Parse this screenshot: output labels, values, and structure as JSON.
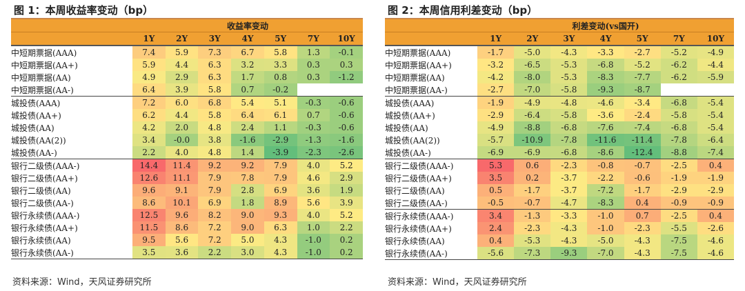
{
  "left": {
    "title": "图 1：本周收益率变动（bp）",
    "header_group": "收益率变动",
    "tenors": [
      "1Y",
      "2Y",
      "3Y",
      "4Y",
      "5Y",
      "7Y",
      "10Y"
    ],
    "rows": [
      {
        "label": "中短期票据(AAA)",
        "values": [
          "7.4",
          "5.9",
          "7.3",
          "6.7",
          "5.8",
          "1.3",
          "-0.1"
        ]
      },
      {
        "label": "中短期票据(AA+)",
        "values": [
          "5.9",
          "4.4",
          "6.3",
          "3.2",
          "3.3",
          "0.3",
          "0.3"
        ]
      },
      {
        "label": "中短期票据(AA)",
        "values": [
          "4.9",
          "2.9",
          "6.3",
          "1.7",
          "0.8",
          "0.3",
          "-1.2"
        ]
      },
      {
        "label": "中短期票据(AA-)",
        "values": [
          "6.4",
          "3.9",
          "5.8",
          "0.7",
          "-0.2",
          "",
          ""
        ],
        "group_end": true
      },
      {
        "label": "城投债(AAA)",
        "values": [
          "7.2",
          "6.0",
          "6.8",
          "5.4",
          "5.1",
          "-0.3",
          "-0.6"
        ]
      },
      {
        "label": "城投债(AA+)",
        "values": [
          "6.2",
          "4.4",
          "5.8",
          "6.4",
          "6.1",
          "0.7",
          "-0.6"
        ]
      },
      {
        "label": "城投债(AA)",
        "values": [
          "4.2",
          "2.0",
          "4.8",
          "2.4",
          "1.1",
          "-0.3",
          "-0.6"
        ]
      },
      {
        "label": "城投债(AA(2))",
        "values": [
          "3.4",
          "-0.0",
          "3.8",
          "-1.6",
          "-2.9",
          "-1.3",
          "-1.6"
        ]
      },
      {
        "label": "城投债(AA-)",
        "values": [
          "2.2",
          "4.0",
          "4.8",
          "1.4",
          "-3.9",
          "-2.3",
          "-2.6"
        ],
        "group_end": true
      },
      {
        "label": "银行二级债(AAA-)",
        "values": [
          "14.4",
          "11.4",
          "9.2",
          "9.2",
          "7.9",
          "4.0",
          "5.2"
        ]
      },
      {
        "label": "银行二级债(AA+)",
        "values": [
          "12.6",
          "11.1",
          "7.9",
          "7.8",
          "7.9",
          "4.6",
          "2.9"
        ]
      },
      {
        "label": "银行二级债(AA)",
        "values": [
          "9.6",
          "9.1",
          "7.9",
          "2.8",
          "6.9",
          "3.6",
          "1.9"
        ]
      },
      {
        "label": "银行二级债(AA-)",
        "values": [
          "8.6",
          "10.1",
          "6.9",
          "1.8",
          "8.9",
          "5.6",
          "3.9"
        ]
      },
      {
        "label": "银行永续债(AAA-)",
        "values": [
          "12.5",
          "9.6",
          "8.2",
          "9.0",
          "9.3",
          "4.0",
          "5.2"
        ]
      },
      {
        "label": "银行永续债(AA+)",
        "values": [
          "11.5",
          "8.6",
          "7.2",
          "9.0",
          "6.3",
          "1.0",
          "2.2"
        ]
      },
      {
        "label": "银行永续债(AA)",
        "values": [
          "9.5",
          "5.6",
          "7.2",
          "5.0",
          "4.3",
          "-1.0",
          "0.2"
        ]
      },
      {
        "label": "银行永续债(AA-)",
        "values": [
          "3.5",
          "3.6",
          "2.2",
          "3.0",
          "4.3",
          "-1.0",
          "0.2"
        ]
      }
    ],
    "source": "资料来源：Wind，天风证券研究所"
  },
  "right": {
    "title": "图 2：本周信用利差变动（bp）",
    "header_group": "利差变动(vs国开)",
    "tenors": [
      "1Y",
      "2Y",
      "3Y",
      "4Y",
      "5Y",
      "7Y",
      "10Y"
    ],
    "rows": [
      {
        "label": "中短期票据(AAA)",
        "values": [
          "-1.7",
          "-5.0",
          "-4.3",
          "-3.3",
          "-2.7",
          "-5.2",
          "-4.9"
        ]
      },
      {
        "label": "中短期票据(AA+)",
        "values": [
          "-3.2",
          "-6.5",
          "-5.3",
          "-6.8",
          "-5.2",
          "-6.2",
          "-4.4"
        ]
      },
      {
        "label": "中短期票据(AA)",
        "values": [
          "-4.2",
          "-8.0",
          "-5.3",
          "-8.3",
          "-7.7",
          "-6.2",
          "-5.9"
        ]
      },
      {
        "label": "中短期票据(AA-)",
        "values": [
          "-2.7",
          "-7.0",
          "-5.8",
          "-9.3",
          "-8.7",
          "",
          ""
        ],
        "group_end": true
      },
      {
        "label": "城投债(AAA)",
        "values": [
          "-1.9",
          "-4.9",
          "-4.8",
          "-4.6",
          "-3.4",
          "-6.8",
          "-5.4"
        ]
      },
      {
        "label": "城投债(AA+)",
        "values": [
          "-2.9",
          "-6.4",
          "-5.8",
          "-3.6",
          "-2.4",
          "-5.8",
          "-5.4"
        ]
      },
      {
        "label": "城投债(AA)",
        "values": [
          "-4.9",
          "-8.8",
          "-6.8",
          "-7.6",
          "-7.4",
          "-6.8",
          "-5.4"
        ]
      },
      {
        "label": "城投债(AA(2))",
        "values": [
          "-5.7",
          "-10.9",
          "-7.8",
          "-11.6",
          "-11.4",
          "-7.8",
          "-6.4"
        ]
      },
      {
        "label": "城投债(AA-)",
        "values": [
          "-6.9",
          "-6.9",
          "-6.8",
          "-8.6",
          "-12.4",
          "-8.8",
          "-7.4"
        ],
        "group_end": true
      },
      {
        "label": "银行二级债(AAA-)",
        "values": [
          "5.3",
          "0.6",
          "-2.3",
          "-0.8",
          "-0.7",
          "-2.5",
          "0.4"
        ]
      },
      {
        "label": "银行二级债(AA+)",
        "values": [
          "3.5",
          "0.2",
          "-3.7",
          "-2.2",
          "-0.6",
          "-1.9",
          "-1.9"
        ]
      },
      {
        "label": "银行二级债(AA)",
        "values": [
          "0.5",
          "-1.7",
          "-3.7",
          "-7.2",
          "-1.7",
          "-2.9",
          "-2.9"
        ]
      },
      {
        "label": "银行二级债(AA-)",
        "values": [
          "-0.5",
          "-0.7",
          "-4.7",
          "-8.3",
          "0.4",
          "-0.9",
          "-0.9"
        ],
        "group_end": true
      },
      {
        "label": "银行永续债(AAA-)",
        "values": [
          "3.4",
          "-1.3",
          "-3.3",
          "-1.0",
          "0.7",
          "-2.5",
          "0.4"
        ]
      },
      {
        "label": "银行永续债(AA+)",
        "values": [
          "2.4",
          "-2.3",
          "-4.3",
          "-1.0",
          "-2.3",
          "-5.5",
          "-2.6"
        ]
      },
      {
        "label": "银行永续债(AA)",
        "values": [
          "0.4",
          "-5.3",
          "-4.3",
          "-5.0",
          "-4.3",
          "-7.5",
          "-4.6"
        ]
      },
      {
        "label": "银行永续债(AA-)",
        "values": [
          "-5.6",
          "-7.3",
          "-9.3",
          "-7.0",
          "-4.3",
          "-7.5",
          "-4.6"
        ]
      }
    ],
    "source": "资料来源：Wind，天风证券研究所"
  },
  "colors": {
    "header_bg": "#f0a032",
    "scale_low": "#63be7b",
    "scale_mid": "#ffeb84",
    "scale_high": "#f8696b"
  }
}
